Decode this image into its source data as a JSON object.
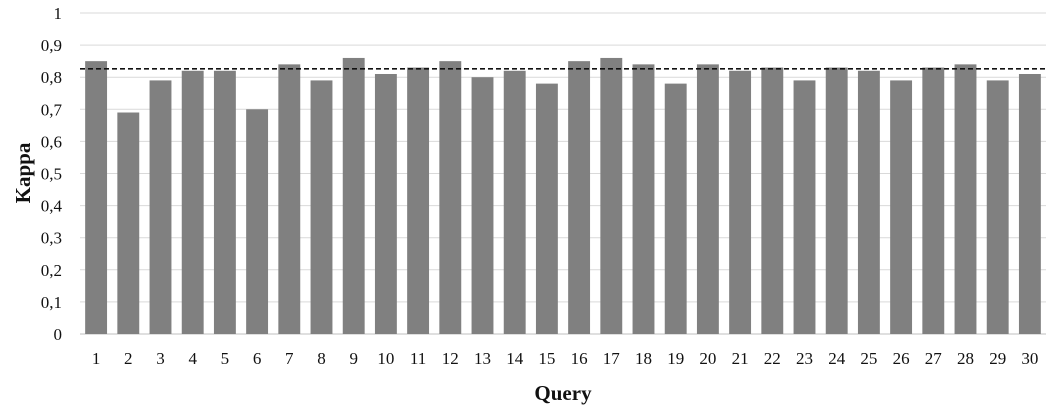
{
  "chart_data": {
    "type": "bar",
    "xlabel": "Query",
    "ylabel": "Kappa",
    "ylim": [
      0,
      1
    ],
    "yticks": [
      "0",
      "0,1",
      "0,2",
      "0,3",
      "0,4",
      "0,5",
      "0,6",
      "0,7",
      "0,8",
      "0,9",
      "1"
    ],
    "categories": [
      "1",
      "2",
      "3",
      "4",
      "5",
      "6",
      "7",
      "8",
      "9",
      "10",
      "11",
      "12",
      "13",
      "14",
      "15",
      "16",
      "17",
      "18",
      "19",
      "20",
      "21",
      "22",
      "23",
      "24",
      "25",
      "26",
      "27",
      "28",
      "29",
      "30"
    ],
    "values": [
      0.85,
      0.69,
      0.79,
      0.82,
      0.82,
      0.7,
      0.84,
      0.79,
      0.86,
      0.81,
      0.83,
      0.85,
      0.8,
      0.82,
      0.78,
      0.85,
      0.86,
      0.84,
      0.78,
      0.84,
      0.82,
      0.83,
      0.79,
      0.83,
      0.82,
      0.79,
      0.83,
      0.84,
      0.79,
      0.81
    ],
    "reference_line": 0.826,
    "reference_line_style": "dashed",
    "grid": true,
    "bar_color": "#808080",
    "grid_color": "#d9d9d9"
  }
}
